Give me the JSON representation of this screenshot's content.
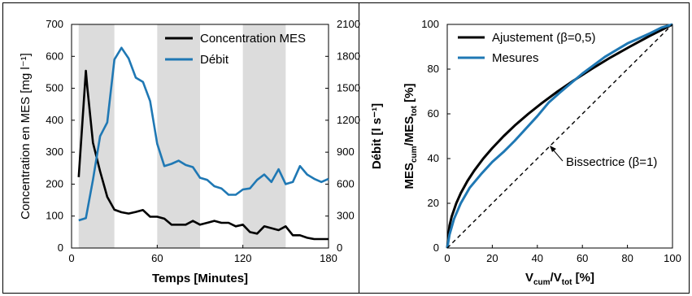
{
  "colors": {
    "black_series": "#000000",
    "blue_series": "#1f78b4",
    "shade": "#dcdcdc",
    "frame": "#000000"
  },
  "chart_data": [
    {
      "type": "line",
      "xlabel": "Temps [Minutes]",
      "ylabel_left": "Concentration en MES [mg l⁻¹]",
      "ylabel_right": "Débit [l s⁻¹]",
      "xlim": [
        0,
        180
      ],
      "ylim_left": [
        0,
        700
      ],
      "ylim_right": [
        0,
        2100
      ],
      "xticks": [
        0,
        60,
        120,
        180
      ],
      "yticks_left": [
        0,
        100,
        200,
        300,
        400,
        500,
        600,
        700
      ],
      "yticks_right": [
        0,
        300,
        600,
        900,
        1200,
        1500,
        1800,
        2100
      ],
      "shaded_intervals": [
        [
          5,
          30
        ],
        [
          60,
          90
        ],
        [
          120,
          150
        ]
      ],
      "grid": false,
      "legend_position": "top-right",
      "series": [
        {
          "name": "Concentration MES",
          "axis": "left",
          "color": "#000000",
          "x": [
            5,
            10,
            11,
            15,
            20,
            25,
            30,
            35,
            40,
            45,
            50,
            55,
            60,
            65,
            70,
            75,
            80,
            85,
            90,
            95,
            100,
            105,
            110,
            115,
            120,
            125,
            130,
            135,
            140,
            145,
            150,
            155,
            160,
            165,
            170,
            175,
            180
          ],
          "y": [
            222,
            555,
            505,
            330,
            240,
            160,
            120,
            112,
            108,
            113,
            119,
            98,
            98,
            92,
            73,
            73,
            73,
            85,
            73,
            79,
            85,
            79,
            79,
            68,
            73,
            50,
            45,
            68,
            62,
            56,
            68,
            40,
            40,
            32,
            28,
            28,
            28
          ]
        },
        {
          "name": "Débit",
          "axis": "right",
          "color": "#1f78b4",
          "x": [
            5,
            10,
            15,
            20,
            25,
            30,
            35,
            40,
            45,
            50,
            55,
            60,
            65,
            70,
            75,
            80,
            85,
            90,
            95,
            100,
            105,
            110,
            115,
            120,
            125,
            130,
            135,
            140,
            145,
            150,
            155,
            160,
            165,
            170,
            175,
            180
          ],
          "y": [
            260,
            280,
            640,
            1050,
            1180,
            1770,
            1880,
            1780,
            1600,
            1560,
            1380,
            980,
            770,
            790,
            820,
            780,
            760,
            660,
            640,
            580,
            560,
            500,
            500,
            550,
            560,
            640,
            690,
            620,
            740,
            600,
            620,
            770,
            690,
            650,
            620,
            650
          ]
        }
      ]
    },
    {
      "type": "line",
      "xlabel": "V_cum/V_tot [%]",
      "ylabel": "MES_cum/MES_tot [%]",
      "xlim": [
        0,
        100
      ],
      "ylim": [
        0,
        100
      ],
      "xticks": [
        0,
        20,
        40,
        60,
        80,
        100
      ],
      "yticks": [
        0,
        20,
        40,
        60,
        80,
        100
      ],
      "grid": false,
      "legend_position": "top-left",
      "annotation": "Bissectrice (β=1)",
      "series": [
        {
          "name": "Ajustement (β=0,5)",
          "color": "#000000",
          "x": [
            0,
            1,
            2,
            4,
            6,
            9,
            12,
            16,
            20,
            25,
            30,
            36,
            42,
            49,
            56,
            64,
            72,
            81,
            90,
            100
          ],
          "y": [
            0,
            10,
            14.1,
            20,
            24.5,
            30,
            34.6,
            40,
            44.7,
            50,
            54.8,
            60,
            64.8,
            70,
            74.8,
            80,
            84.9,
            90,
            94.9,
            100
          ]
        },
        {
          "name": "Mesures",
          "color": "#1f78b4",
          "x": [
            0,
            1,
            3,
            6,
            10,
            15,
            20,
            25,
            30,
            40,
            45,
            50,
            60,
            70,
            80,
            90,
            95,
            100
          ],
          "y": [
            0,
            6,
            13,
            20,
            27,
            33,
            38.5,
            43,
            48,
            59,
            65,
            69.5,
            78,
            85.5,
            91.5,
            96,
            98.5,
            100
          ]
        },
        {
          "name": "Bissectrice (β=1)",
          "color": "#000000",
          "dashed": true,
          "x": [
            0,
            100
          ],
          "y": [
            0,
            100
          ]
        }
      ]
    }
  ]
}
